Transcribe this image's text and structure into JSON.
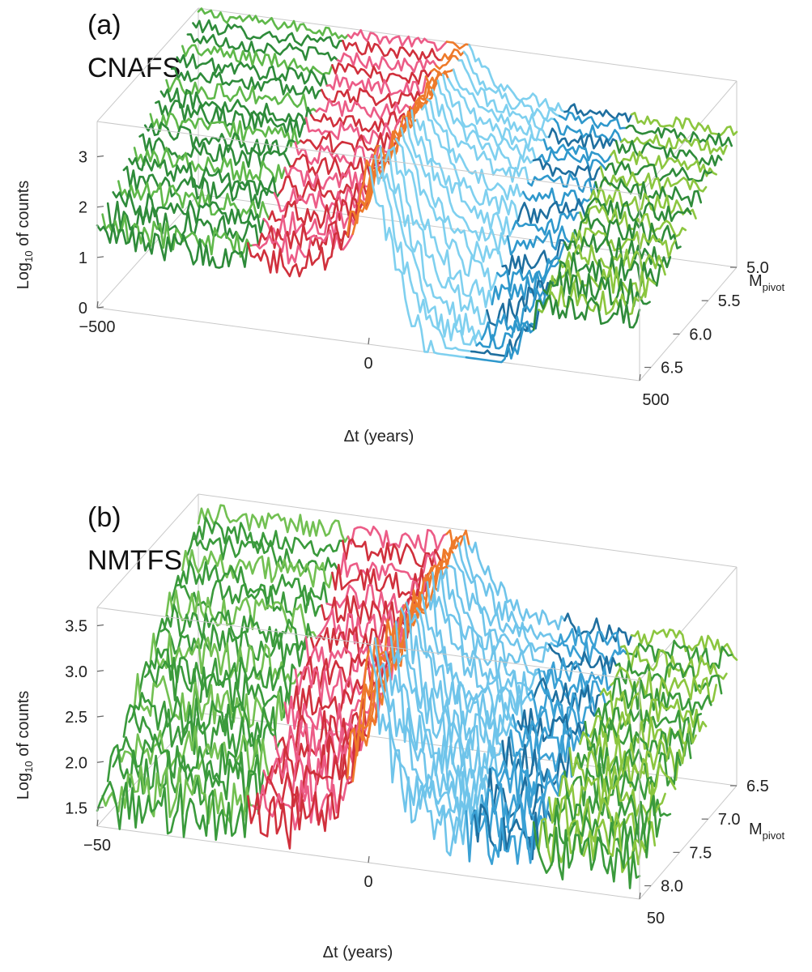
{
  "chart_data": [
    {
      "type": "line",
      "panel_label": "(a)",
      "title": "CNAFS",
      "xlabel": "Δt (years)",
      "ylabel_main": "Log",
      "ylabel_sub": "10",
      "ylabel_rest": " of counts",
      "zlabel_main": "M",
      "zlabel_sub": "pivot",
      "xlim": [
        -500,
        500
      ],
      "x_ticks": [
        "−500",
        "0",
        "500"
      ],
      "ylim": [
        0,
        3.7
      ],
      "y_ticks": [
        "0",
        "1",
        "2",
        "3"
      ],
      "y_tick_values": [
        0,
        1,
        2,
        3
      ],
      "zlim": [
        5.0,
        6.7
      ],
      "z_ticks": [
        "5.0",
        "5.5",
        "6.0",
        "6.5"
      ],
      "z_tick_values": [
        5.0,
        5.5,
        6.0,
        6.5
      ],
      "series_count": 20,
      "series_note": "Stacked curves for M_pivot from 5.0 (back) to 6.7 (front)",
      "foreshock_base": 1.4,
      "foreshock_rise": 3.7,
      "aftershock_peak": 3.7,
      "aftershock_base_back": 2.7,
      "aftershock_base_front": 1.3,
      "colors": {
        "background_dark": "#2e8b3a",
        "background_light": "#5fb84a",
        "foreshock_pink": "#ec5c87",
        "foreshock_red": "#d0303c",
        "foreshock_orange": "#ee7a2a",
        "aftershock_light": "#7fd0ef",
        "aftershock_mid": "#2f98cc",
        "aftershock_dark": "#1f6f9f",
        "aftershock_green": "#8cc63f"
      }
    },
    {
      "type": "line",
      "panel_label": "(b)",
      "title": "NMTFS",
      "xlabel": "Δt (years)",
      "ylabel_main": "Log",
      "ylabel_sub": "10",
      "ylabel_rest": " of counts",
      "zlabel_main": "M",
      "zlabel_sub": "pivot",
      "xlim": [
        -50,
        50
      ],
      "x_ticks": [
        "−50",
        "0",
        "50"
      ],
      "ylim": [
        1.3,
        3.7
      ],
      "y_ticks": [
        "1.5",
        "2.0",
        "2.5",
        "3.0",
        "3.5"
      ],
      "y_tick_values": [
        1.5,
        2.0,
        2.5,
        3.0,
        3.5
      ],
      "zlim": [
        6.5,
        8.2
      ],
      "z_ticks": [
        "6.5",
        "7.0",
        "7.5",
        "8.0"
      ],
      "z_tick_values": [
        6.5,
        7.0,
        7.5,
        8.0
      ],
      "series_count": 20,
      "series_note": "Stacked curves for M_pivot from 6.5 (back) to 8.2 (front)",
      "foreshock_base": 1.6,
      "foreshock_rise": 3.7,
      "aftershock_peak": 3.7,
      "aftershock_base_back": 2.8,
      "aftershock_base_front": 1.7,
      "colors": {
        "background_dark": "#3a9a3c",
        "background_light": "#72c052",
        "foreshock_pink": "#ec5c87",
        "foreshock_red": "#d0303c",
        "foreshock_orange": "#ee7a2a",
        "aftershock_light": "#6fc4ea",
        "aftershock_mid": "#3aa0d4",
        "aftershock_dark": "#1f6f9f",
        "aftershock_green": "#8cc63f"
      }
    }
  ]
}
